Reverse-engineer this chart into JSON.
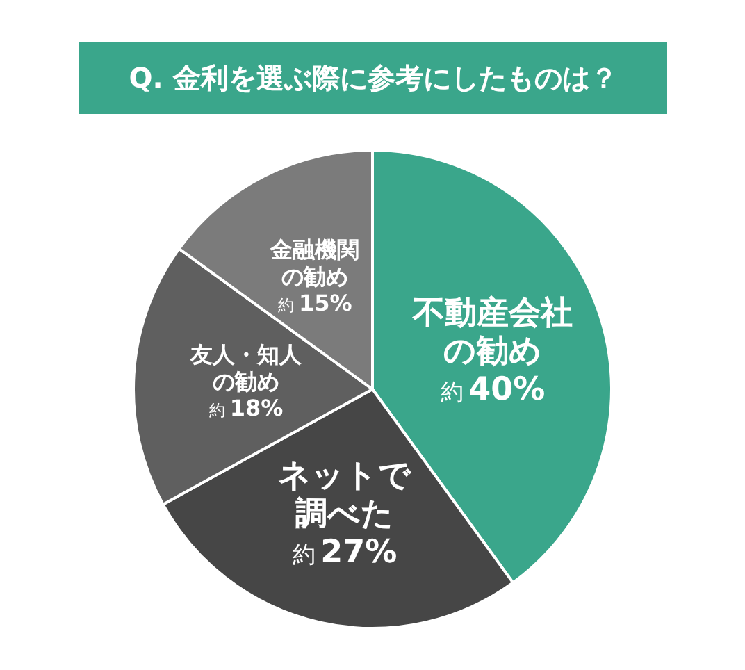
{
  "chart_data": {
    "type": "pie",
    "title": "Q. 金利を選ぶ際に参考にしたものは？",
    "categories": [
      "不動産会社の勧め",
      "ネットで調べた",
      "友人・知人の勧め",
      "金融機関の勧め"
    ],
    "values": [
      40,
      27,
      18,
      15
    ],
    "colors": [
      "#3aa68b",
      "#464646",
      "#5f5f5f",
      "#7b7b7b"
    ],
    "value_labels": [
      "約40%",
      "約27%",
      "約18%",
      "約15%"
    ]
  }
}
